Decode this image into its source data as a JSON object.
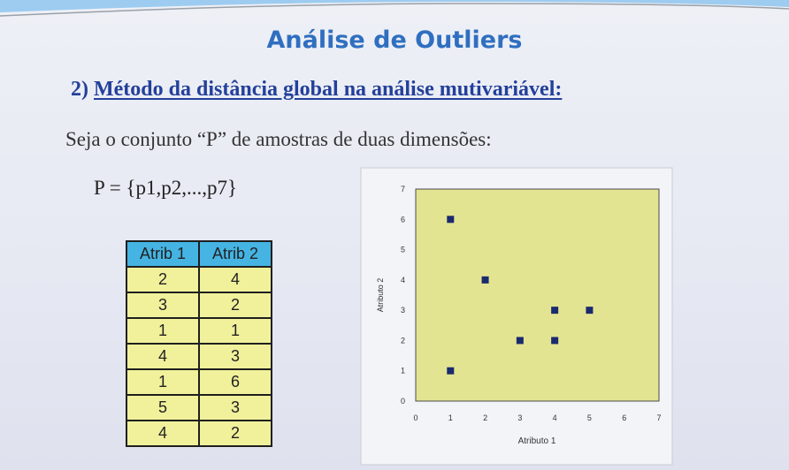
{
  "slide": {
    "title": "Análise de Outliers",
    "section_number": "2)",
    "section_title": "Método da distância global na análise mutivariável:",
    "intro": "Seja o conjunto “P” de amostras de duas dimensões:",
    "set_definition": "P = {p1,p2,...,p7}"
  },
  "table": {
    "headers": [
      "Atrib 1",
      "Atrib 2"
    ],
    "rows": [
      [
        "2",
        "4"
      ],
      [
        "3",
        "2"
      ],
      [
        "1",
        "1"
      ],
      [
        "4",
        "3"
      ],
      [
        "1",
        "6"
      ],
      [
        "5",
        "3"
      ],
      [
        "4",
        "2"
      ]
    ]
  },
  "colors": {
    "title": "#2f6fc0",
    "heading": "#23409a",
    "table_header": "#45b4e3",
    "table_cell": "#f1f19c",
    "plot_area": "#e3e491",
    "marker": "#1a2a6e"
  },
  "chart_data": {
    "type": "scatter",
    "xlabel": "Atributo 1",
    "ylabel": "Atributo 2",
    "xlim": [
      0,
      7
    ],
    "ylim": [
      0,
      7
    ],
    "xticks": [
      "0",
      "1",
      "2",
      "3",
      "4",
      "5",
      "6",
      "7"
    ],
    "yticks": [
      "0",
      "1",
      "2",
      "3",
      "4",
      "5",
      "6",
      "7"
    ],
    "grid": false,
    "legend": "none",
    "points": [
      {
        "x": 2,
        "y": 4
      },
      {
        "x": 3,
        "y": 2
      },
      {
        "x": 1,
        "y": 1
      },
      {
        "x": 4,
        "y": 3
      },
      {
        "x": 1,
        "y": 6
      },
      {
        "x": 5,
        "y": 3
      },
      {
        "x": 4,
        "y": 2
      }
    ]
  }
}
